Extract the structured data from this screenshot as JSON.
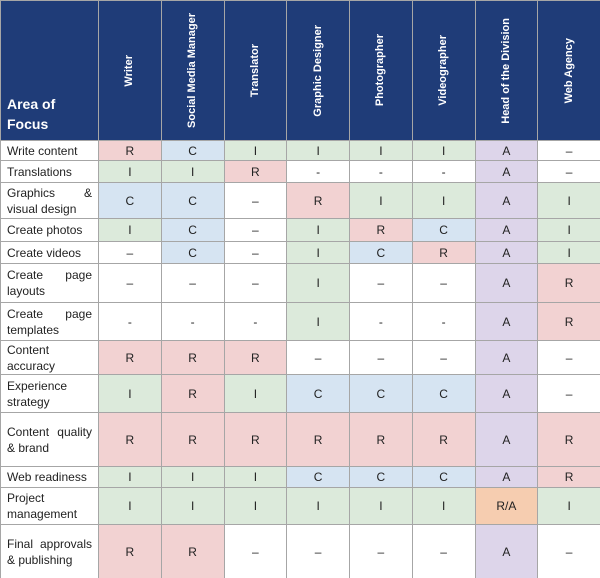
{
  "header": {
    "corner": "Area of Focus",
    "columns": [
      "Writer",
      "Social Media Manager",
      "Translator",
      "Graphic Designer",
      "Photographer",
      "Videographer",
      "Head of the Division",
      "Web Agency"
    ]
  },
  "role_colors": {
    "R": "#f2d2d2",
    "C": "#d6e4f2",
    "I": "#dceadb",
    "A": "#ddd5ea",
    "R/A": "#f6cdb0"
  },
  "rows": [
    {
      "label": "Write content",
      "cells": [
        "R",
        "C",
        "I",
        "I",
        "I",
        "I",
        "A",
        "–"
      ]
    },
    {
      "label": "Translations",
      "cells": [
        "I",
        "I",
        "R",
        "-",
        "-",
        "-",
        "A",
        "–"
      ]
    },
    {
      "label": "Graphics & visual design",
      "cells": [
        "C",
        "C",
        "–",
        "R",
        "I",
        "I",
        "A",
        "I"
      ]
    },
    {
      "label": "Create photos",
      "cells": [
        "I",
        "C",
        "–",
        "I",
        "R",
        "C",
        "A",
        "I"
      ]
    },
    {
      "label": "Create videos",
      "cells": [
        "–",
        "C",
        "–",
        "I",
        "C",
        "R",
        "A",
        "I"
      ]
    },
    {
      "label": "Create page layouts",
      "cells": [
        "–",
        "–",
        "–",
        "I",
        "–",
        "–",
        "A",
        "R"
      ]
    },
    {
      "label": "Create page templates",
      "cells": [
        "-",
        "-",
        "-",
        "I",
        "-",
        "-",
        "A",
        "R"
      ]
    },
    {
      "label": "Content accuracy",
      "cells": [
        "R",
        "R",
        "R",
        "–",
        "–",
        "–",
        "A",
        "–"
      ]
    },
    {
      "label": "Experience strategy",
      "cells": [
        "I",
        "R",
        "I",
        "C",
        "C",
        "C",
        "A",
        "–"
      ]
    },
    {
      "label": "Content quality & brand",
      "cells": [
        "R",
        "R",
        "R",
        "R",
        "R",
        "R",
        "A",
        "R"
      ]
    },
    {
      "label": "Web readiness",
      "cells": [
        "I",
        "I",
        "I",
        "C",
        "C",
        "C",
        "A",
        "R"
      ]
    },
    {
      "label": "Project management",
      "cells": [
        "I",
        "I",
        "I",
        "I",
        "I",
        "I",
        "R/A",
        "I"
      ]
    },
    {
      "label": "Final approvals & publishing",
      "cells": [
        "R",
        "R",
        "–",
        "–",
        "–",
        "–",
        "A",
        "–"
      ]
    }
  ]
}
